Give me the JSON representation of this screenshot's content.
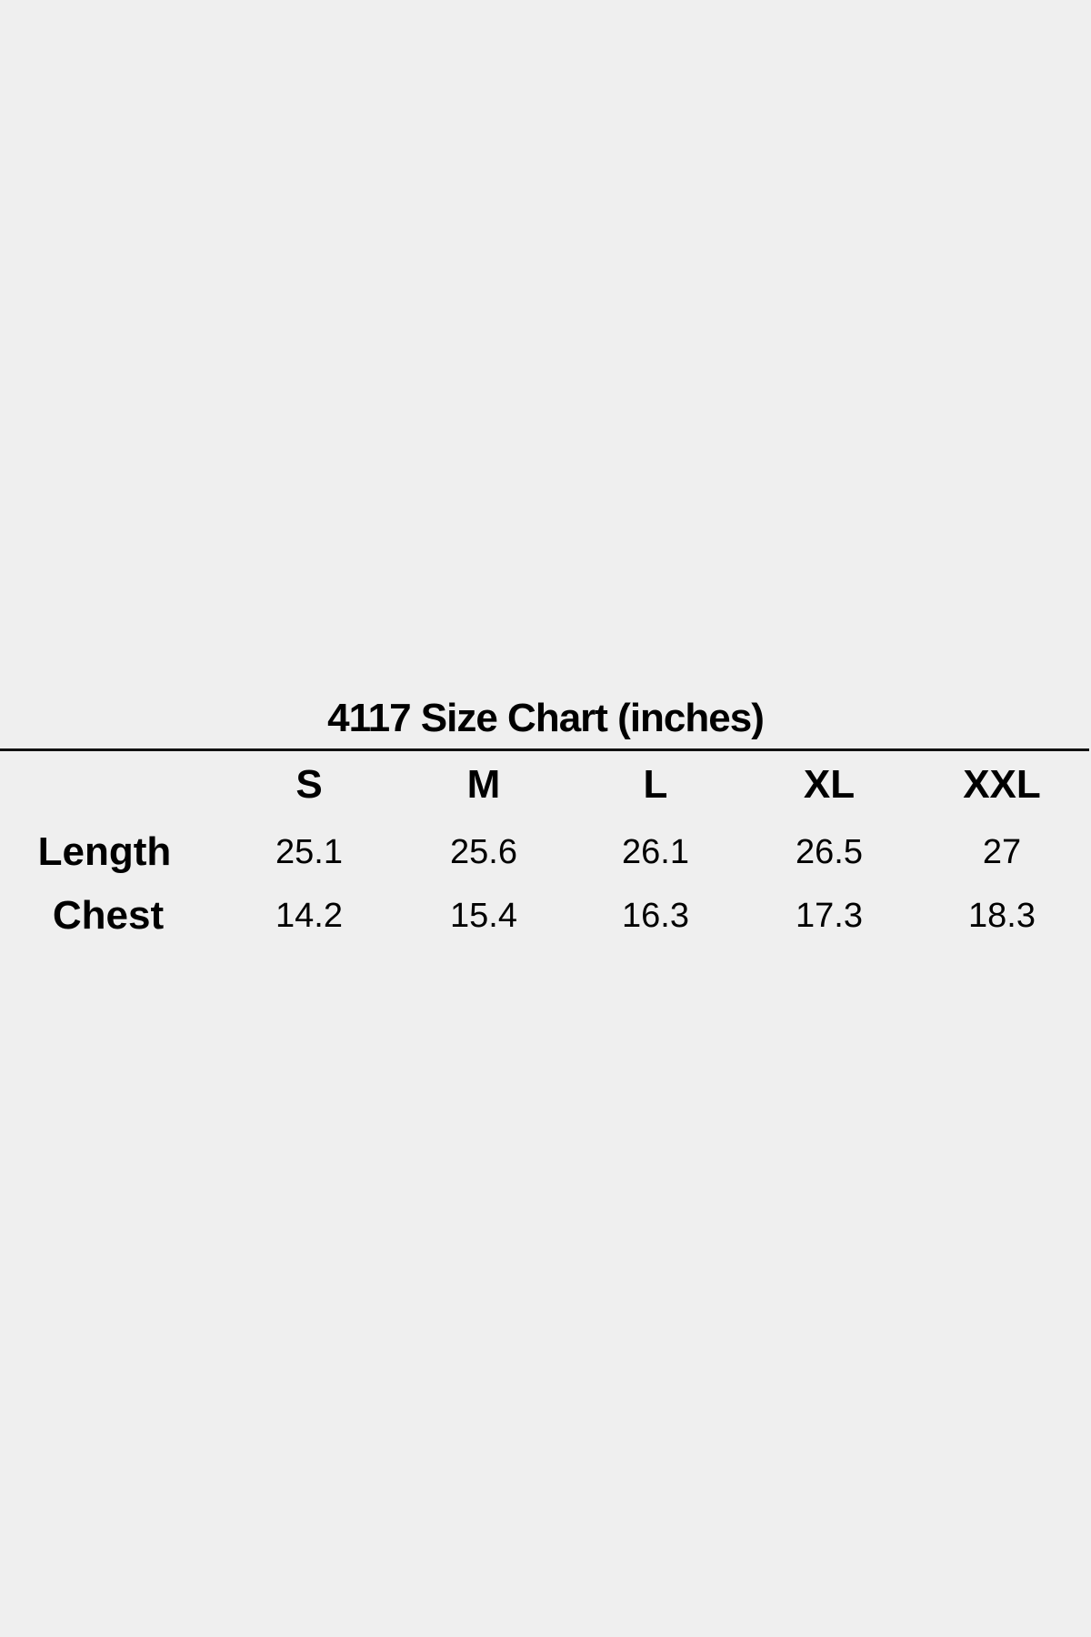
{
  "title": "4117 Size Chart (inches)",
  "columns": [
    "S",
    "M",
    "L",
    "XL",
    "XXL"
  ],
  "rows": [
    {
      "label": "Length",
      "values": [
        "25.1",
        "25.6",
        "26.1",
        "26.5",
        "27"
      ]
    },
    {
      "label": "Chest",
      "values": [
        "14.2",
        "15.4",
        "16.3",
        "17.3",
        "18.3"
      ]
    }
  ]
}
